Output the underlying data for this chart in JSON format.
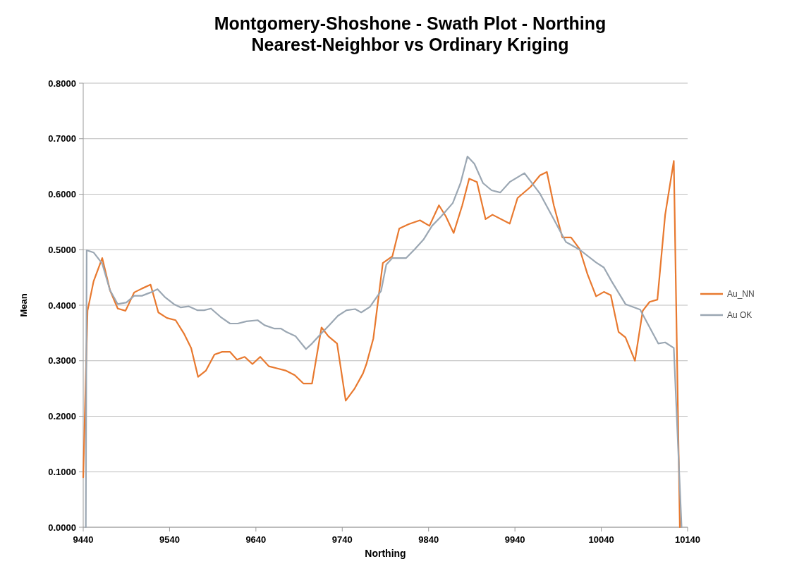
{
  "chart_data": {
    "type": "line",
    "title": "Montgomery-Shoshone - Swath Plot - Northing\nNearest-Neighbor vs Ordinary Kriging",
    "xlabel": "Northing",
    "ylabel": "Mean",
    "xlim": [
      9440,
      10140
    ],
    "xticks": [
      9440,
      9540,
      9640,
      9740,
      9840,
      9940,
      10040,
      10140
    ],
    "ylim": [
      0,
      0.8
    ],
    "yticks": [
      {
        "value": 0,
        "label": "0.0000"
      },
      {
        "value": 0.1,
        "label": "0.1000"
      },
      {
        "value": 0.2,
        "label": "0.2000"
      },
      {
        "value": 0.3,
        "label": "0.3000"
      },
      {
        "value": 0.4,
        "label": "0.4000"
      },
      {
        "value": 0.5,
        "label": "0.5000"
      },
      {
        "value": 0.6,
        "label": "0.6000"
      },
      {
        "value": 0.7,
        "label": "0.7000"
      },
      {
        "value": 0.8,
        "label": "0.8000"
      }
    ],
    "grid": "y",
    "legend": "right",
    "marker": "none",
    "line_style": "solid",
    "series": [
      {
        "name": "Au_NN",
        "color": "#e8792f",
        "x": [
          9440,
          9445,
          9452,
          9462,
          9471,
          9480,
          9489,
          9499,
          9508,
          9518,
          9527,
          9537,
          9547,
          9557,
          9565,
          9573,
          9582,
          9592,
          9601,
          9610,
          9618,
          9627,
          9636,
          9645,
          9655,
          9665,
          9675,
          9685,
          9695,
          9705,
          9716,
          9724,
          9734,
          9744,
          9754,
          9764,
          9768,
          9776,
          9787,
          9798,
          9806,
          9817,
          9830,
          9841,
          9852,
          9860,
          9869,
          9879,
          9887,
          9896,
          9906,
          9914,
          9934,
          9943,
          9958,
          9969,
          9977,
          9985,
          9995,
          10005,
          10015,
          10024,
          10034,
          10043,
          10051,
          10060,
          10068,
          10079,
          10088,
          10096,
          10105,
          10114,
          10124,
          10131
        ],
        "values": [
          0.09,
          0.39,
          0.443,
          0.485,
          0.427,
          0.394,
          0.39,
          0.423,
          0.43,
          0.437,
          0.387,
          0.377,
          0.373,
          0.348,
          0.323,
          0.271,
          0.282,
          0.311,
          0.316,
          0.316,
          0.302,
          0.307,
          0.294,
          0.307,
          0.29,
          0.286,
          0.282,
          0.274,
          0.259,
          0.259,
          0.36,
          0.344,
          0.331,
          0.228,
          0.249,
          0.277,
          0.294,
          0.34,
          0.476,
          0.488,
          0.538,
          0.546,
          0.553,
          0.543,
          0.58,
          0.56,
          0.53,
          0.58,
          0.628,
          0.622,
          0.555,
          0.563,
          0.547,
          0.593,
          0.613,
          0.634,
          0.64,
          0.58,
          0.522,
          0.522,
          0.501,
          0.456,
          0.416,
          0.424,
          0.418,
          0.352,
          0.342,
          0.3,
          0.39,
          0.406,
          0.41,
          0.563,
          0.66,
          0
        ]
      },
      {
        "name": "Au OK",
        "color": "#9ba7b3",
        "x": [
          9443,
          9444,
          9452,
          9462,
          9471,
          9480,
          9490,
          9499,
          9508,
          9518,
          9526,
          9535,
          9545,
          9553,
          9562,
          9572,
          9580,
          9588,
          9599,
          9610,
          9619,
          9629,
          9642,
          9650,
          9661,
          9669,
          9675,
          9686,
          9698,
          9705,
          9715,
          9725,
          9735,
          9745,
          9755,
          9762,
          9772,
          9785,
          9791,
          9798,
          9814,
          9824,
          9834,
          9844,
          9854,
          9868,
          9877,
          9885,
          9893,
          9903,
          9913,
          9923,
          9934,
          9951,
          9969,
          9985,
          9999,
          10015,
          10034,
          10043,
          10052,
          10068,
          10085,
          10106,
          10114,
          10124,
          10133
        ],
        "values": [
          0,
          0.499,
          0.495,
          0.475,
          0.427,
          0.402,
          0.405,
          0.417,
          0.417,
          0.423,
          0.429,
          0.414,
          0.402,
          0.396,
          0.398,
          0.391,
          0.391,
          0.394,
          0.379,
          0.367,
          0.367,
          0.371,
          0.373,
          0.364,
          0.358,
          0.358,
          0.352,
          0.344,
          0.321,
          0.331,
          0.348,
          0.364,
          0.381,
          0.391,
          0.393,
          0.387,
          0.397,
          0.426,
          0.473,
          0.485,
          0.485,
          0.501,
          0.518,
          0.543,
          0.559,
          0.584,
          0.62,
          0.668,
          0.655,
          0.62,
          0.607,
          0.603,
          0.622,
          0.638,
          0.601,
          0.555,
          0.514,
          0.5,
          0.477,
          0.468,
          0.443,
          0.402,
          0.392,
          0.331,
          0.333,
          0.323,
          0
        ]
      }
    ]
  }
}
